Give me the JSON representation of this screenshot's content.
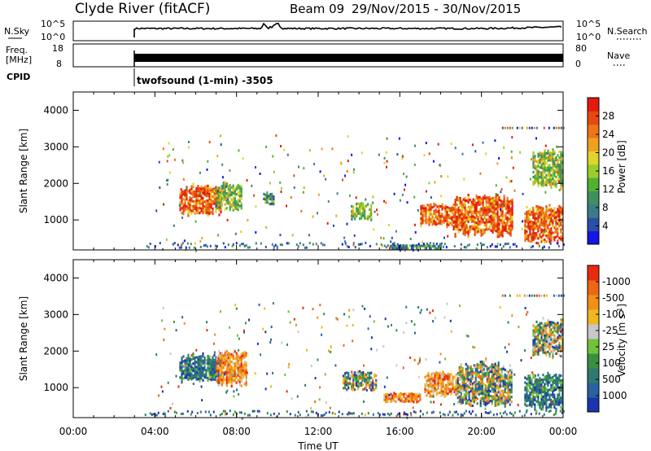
{
  "header": {
    "station": "Clyde River (fitACF)",
    "beam": "Beam 09",
    "date_range": "29/Nov/2015 - 30/Nov/2015"
  },
  "noise_panel": {
    "left_label": "N.Sky",
    "left_ticks": [
      "10^5",
      "10^0"
    ],
    "right_ticks": [
      "10^5",
      "10^0"
    ],
    "right_label": "N.Search"
  },
  "freq_panel": {
    "left_label_1": "Freq.",
    "left_label_2": "[MHz]",
    "left_ticks": [
      "18",
      "8"
    ],
    "right_ticks": [
      "80",
      "0"
    ],
    "right_label": "Nave"
  },
  "cpid": {
    "label": "CPID",
    "text": "twofsound (1-min) -3505"
  },
  "time_axis": {
    "ticks": [
      "00:00",
      "04:00",
      "08:00",
      "12:00",
      "16:00",
      "20:00",
      "00:00"
    ],
    "label": "Time UT"
  },
  "chart_data": [
    {
      "type": "heatmap",
      "name": "power-panel",
      "ylabel": "Slant Range [km]",
      "ylim": [
        180,
        4500
      ],
      "yticks": [
        "1000",
        "2000",
        "3000",
        "4000"
      ],
      "xlim_hours": [
        0,
        24
      ],
      "colorbar": {
        "label": "Power [dB]",
        "tick_labels": [
          "4",
          "8",
          "12",
          "16",
          "20",
          "24",
          "28"
        ],
        "colors": [
          "#1515e6",
          "#2a4fa8",
          "#3d7a8a",
          "#3f8f5f",
          "#52b032",
          "#9ccc2a",
          "#e0d52a",
          "#f0a020",
          "#ef7418",
          "#e84812",
          "#e41a0e"
        ]
      },
      "echo_regions": [
        {
          "t": [
            5.2,
            7.2
          ],
          "range_km": [
            1100,
            2000
          ],
          "level": "high"
        },
        {
          "t": [
            7.0,
            8.2
          ],
          "range_km": [
            1200,
            2100
          ],
          "level": "mid"
        },
        {
          "t": [
            9.3,
            9.8
          ],
          "range_km": [
            1400,
            1800
          ],
          "level": "low"
        },
        {
          "t": [
            13.6,
            14.6
          ],
          "range_km": [
            1000,
            1500
          ],
          "level": "mid"
        },
        {
          "t": [
            17.0,
            18.6
          ],
          "range_km": [
            800,
            1500
          ],
          "level": "high"
        },
        {
          "t": [
            18.6,
            21.5
          ],
          "range_km": [
            500,
            1800
          ],
          "level": "high"
        },
        {
          "t": [
            22.1,
            24.0
          ],
          "range_km": [
            300,
            1500
          ],
          "level": "high"
        },
        {
          "t": [
            22.5,
            24.0
          ],
          "range_km": [
            1800,
            3000
          ],
          "level": "mid"
        },
        {
          "t": [
            15.5,
            18.0
          ],
          "range_km": [
            180,
            350
          ],
          "level": "low"
        }
      ]
    },
    {
      "type": "heatmap",
      "name": "velocity-panel",
      "ylabel": "Slant Range [km]",
      "ylim": [
        180,
        4500
      ],
      "yticks": [
        "1000",
        "2000",
        "3000",
        "4000"
      ],
      "xlim_hours": [
        0,
        24
      ],
      "colorbar": {
        "label": "Velocity [m s",
        "label_sup": "-1",
        "label_end": "]",
        "tick_labels": [
          "1000",
          "500",
          "100",
          "25",
          "-25",
          "-100",
          "-500",
          "-1000"
        ],
        "colors": [
          "#1c34b0",
          "#2a62a0",
          "#2f7a6e",
          "#3a9040",
          "#6fc23a",
          "#c8c8c8",
          "#f0b820",
          "#f09018",
          "#ec6616",
          "#e82a10"
        ]
      },
      "echo_regions": [
        {
          "t": [
            5.2,
            7.2
          ],
          "range_km": [
            1100,
            2000
          ],
          "level": "toward"
        },
        {
          "t": [
            7.0,
            8.5
          ],
          "range_km": [
            1000,
            2100
          ],
          "level": "away"
        },
        {
          "t": [
            13.2,
            14.8
          ],
          "range_km": [
            900,
            1500
          ],
          "level": "mixed"
        },
        {
          "t": [
            15.2,
            17.0
          ],
          "range_km": [
            600,
            900
          ],
          "level": "away"
        },
        {
          "t": [
            17.2,
            18.8
          ],
          "range_km": [
            700,
            1500
          ],
          "level": "away"
        },
        {
          "t": [
            18.8,
            21.5
          ],
          "range_km": [
            400,
            1800
          ],
          "level": "mixed"
        },
        {
          "t": [
            22.1,
            24.0
          ],
          "range_km": [
            300,
            1500
          ],
          "level": "toward"
        },
        {
          "t": [
            22.5,
            24.0
          ],
          "range_km": [
            1800,
            3000
          ],
          "level": "mixed"
        }
      ]
    }
  ]
}
